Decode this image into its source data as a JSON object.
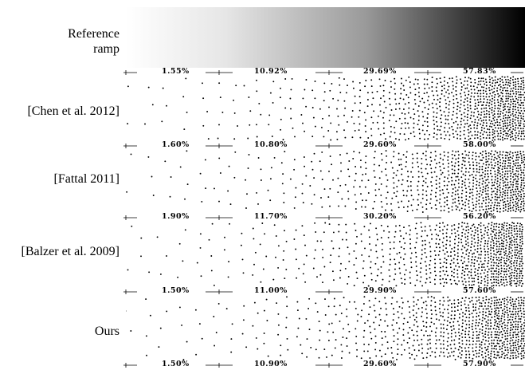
{
  "labels": {
    "reference": [
      "Reference",
      "ramp"
    ],
    "chen": "[Chen et al. 2012]",
    "fattal": "[Fattal 2011]",
    "balzer": "[Balzer et al. 2009]",
    "ours": "Ours"
  },
  "rulers": [
    {
      "values": [
        "1.55%",
        "10.92%",
        "29.69%",
        "57.83%"
      ]
    },
    {
      "values": [
        "1.60%",
        "10.80%",
        "29.60%",
        "58.00%"
      ]
    },
    {
      "values": [
        "1.90%",
        "11.70%",
        "30.20%",
        "56.20%"
      ]
    },
    {
      "values": [
        "1.50%",
        "11.00%",
        "29.90%",
        "57.60%"
      ]
    },
    {
      "values": [
        "1.50%",
        "10.90%",
        "29.60%",
        "57.90%"
      ]
    }
  ],
  "colors": {
    "ink": "#000000",
    "background": "#ffffff"
  }
}
